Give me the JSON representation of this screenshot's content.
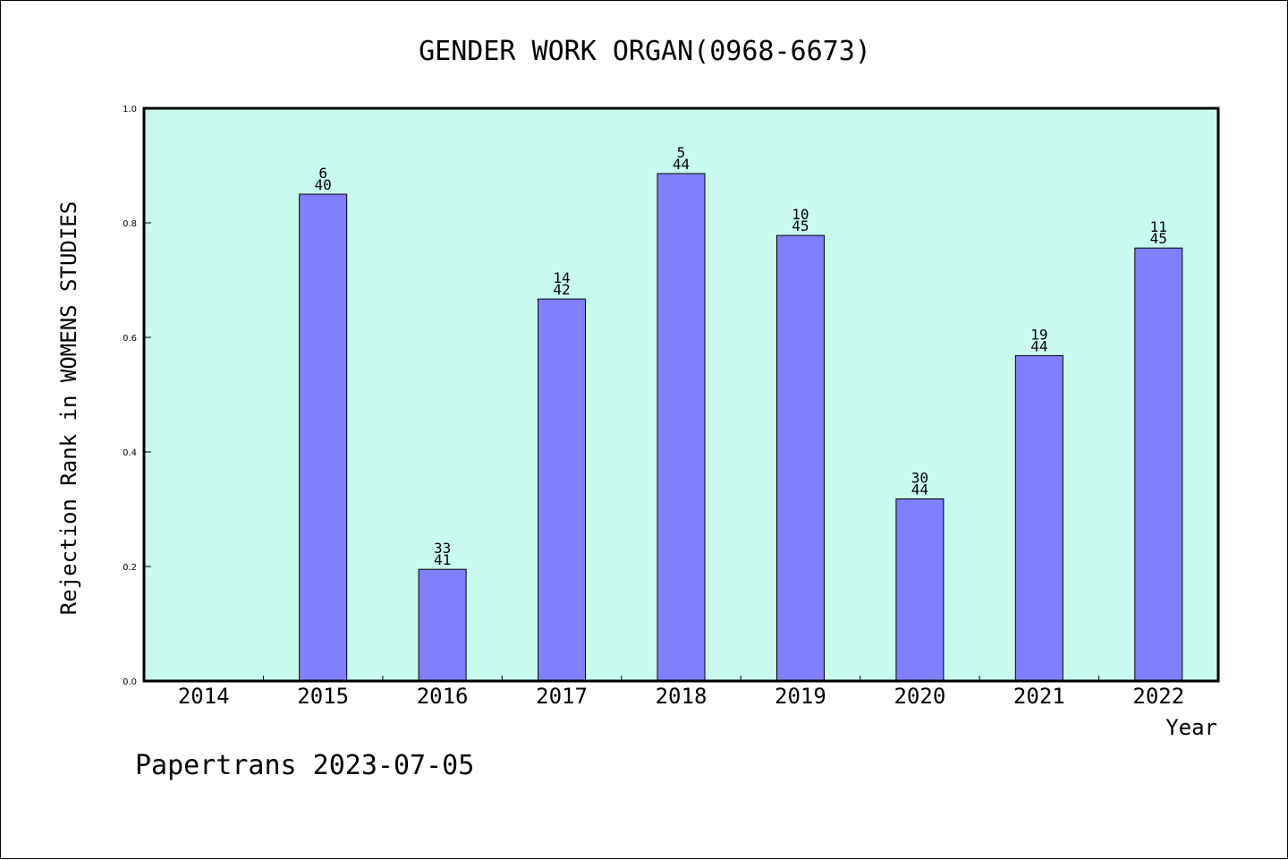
{
  "colors": {
    "plot_bg": "#c8fbee",
    "bar": "#8080ff",
    "axis": "#000000"
  },
  "footer": "Papertrans 2023-07-05",
  "chart_data": {
    "type": "bar",
    "title": "GENDER WORK ORGAN(0968-6673)",
    "xlabel": "Year",
    "ylabel": "Rejection Rank in WOMENS STUDIES",
    "ylim": [
      0,
      1.0
    ],
    "yticks": [
      "0.0",
      "0.2",
      "0.4",
      "0.6",
      "0.8",
      "1.0"
    ],
    "grid": false,
    "categories": [
      "2014",
      "2015",
      "2016",
      "2017",
      "2018",
      "2019",
      "2020",
      "2021",
      "2022"
    ],
    "values": [
      null,
      0.85,
      0.195,
      0.667,
      0.886,
      0.778,
      0.318,
      0.568,
      0.756
    ],
    "labels": [
      null,
      [
        "6",
        "40"
      ],
      [
        "33",
        "41"
      ],
      [
        "14",
        "42"
      ],
      [
        "5",
        "44"
      ],
      [
        "10",
        "45"
      ],
      [
        "30",
        "44"
      ],
      [
        "19",
        "44"
      ],
      [
        "11",
        "45"
      ]
    ]
  }
}
